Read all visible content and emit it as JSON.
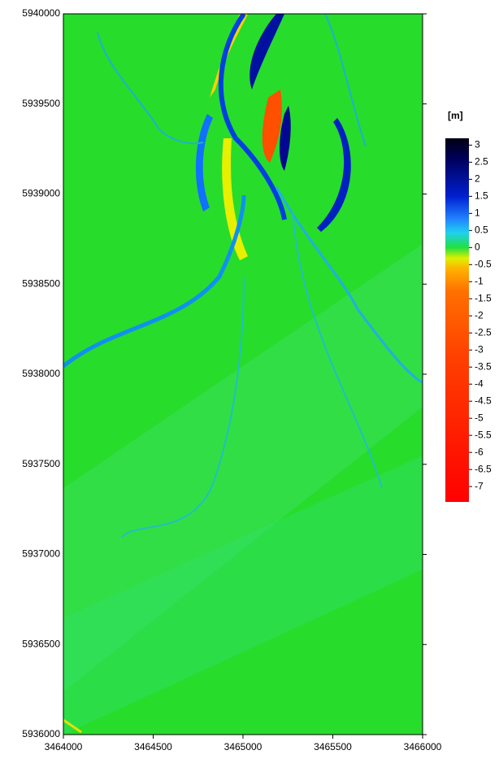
{
  "chart_data": {
    "type": "raster-map",
    "xlim": [
      3464000,
      3466000
    ],
    "xticks": [
      3464000,
      3464500,
      3465000,
      3465500,
      3466000
    ],
    "ylim": [
      5936000,
      5940000
    ],
    "yticks": [
      5936000,
      5936500,
      5937000,
      5937500,
      5938000,
      5938500,
      5939000,
      5939500,
      5940000
    ],
    "colorbar": {
      "label": "[m]",
      "lim": [
        -7.45,
        3.2
      ],
      "ticks": [
        3,
        2.5,
        2,
        1.5,
        1,
        0.5,
        0,
        -0.5,
        -1,
        -1.5,
        -2,
        -2.5,
        -3,
        -3.5,
        -4,
        -4.5,
        -5,
        -5.5,
        -6,
        -6.5,
        -7
      ]
    }
  }
}
